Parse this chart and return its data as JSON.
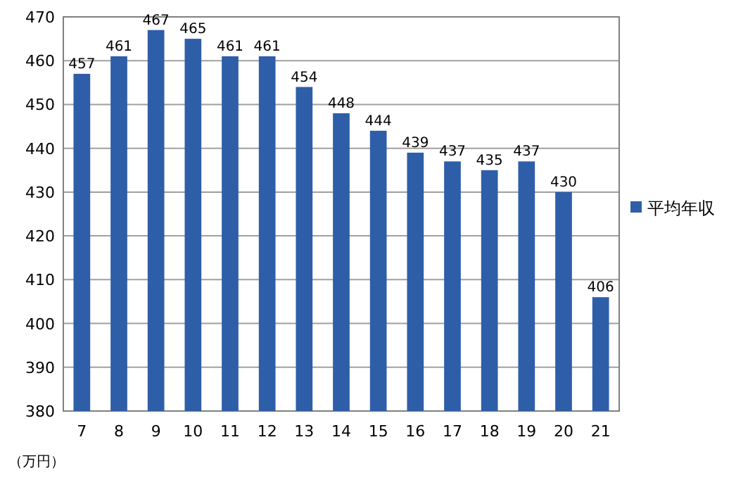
{
  "chart_data": {
    "type": "bar",
    "categories": [
      "7",
      "8",
      "9",
      "10",
      "11",
      "12",
      "13",
      "14",
      "15",
      "16",
      "17",
      "18",
      "19",
      "20",
      "21"
    ],
    "series": [
      {
        "name": "平均年収",
        "color": "#2e5ea8",
        "values": [
          457,
          461,
          467,
          465,
          461,
          461,
          454,
          448,
          444,
          439,
          437,
          435,
          437,
          430,
          406
        ]
      }
    ],
    "ylim": [
      380,
      470
    ],
    "yticks": [
      380,
      390,
      400,
      410,
      420,
      430,
      440,
      450,
      460,
      470
    ],
    "grid": "y",
    "legend": "right",
    "data_labels": true,
    "annotations": [
      "（万円）"
    ]
  }
}
